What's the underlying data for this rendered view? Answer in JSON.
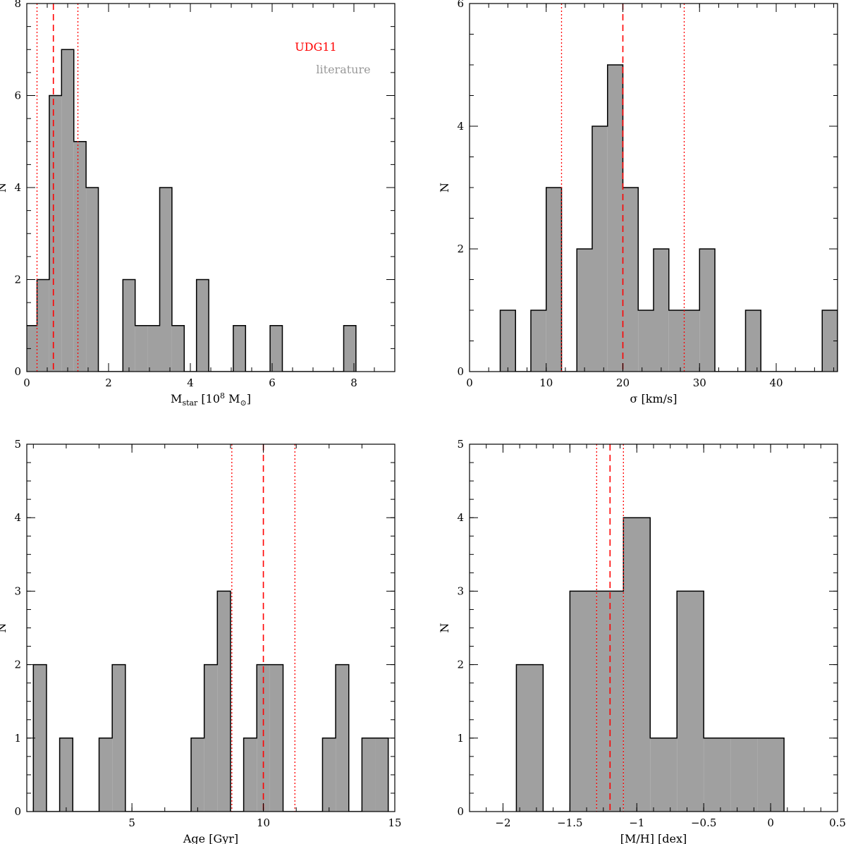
{
  "colors": {
    "bars": "#a0a0a0",
    "outline": "#000000",
    "udg11": "#ff0000",
    "literature": "#999999"
  },
  "legend": {
    "udg11": "UDG11",
    "literature": "literature"
  },
  "chart_data": [
    {
      "type": "bar",
      "xlabel": "M_star [10^8 M_⊙]",
      "ylabel": "N",
      "xlim": [
        0,
        9
      ],
      "ylim": [
        0,
        8
      ],
      "xticks": [
        0,
        2,
        4,
        6,
        8
      ],
      "yticks": [
        0,
        2,
        4,
        6,
        8
      ],
      "bin_width": 0.3,
      "bin_start": -0.05,
      "counts": [
        1,
        2,
        6,
        7,
        5,
        4,
        0,
        0,
        2,
        1,
        1,
        4,
        1,
        0,
        2,
        0,
        0,
        1,
        0,
        0,
        1,
        0,
        0,
        0,
        0,
        0,
        1
      ],
      "udg11": {
        "value": 0.65,
        "low": 0.25,
        "high": 1.25
      },
      "legend_position": "top-right"
    },
    {
      "type": "bar",
      "xlabel": "σ [km/s]",
      "ylabel": "N",
      "xlim": [
        0,
        48
      ],
      "ylim": [
        0,
        6
      ],
      "xticks": [
        0,
        10,
        20,
        30,
        40
      ],
      "yticks": [
        0,
        2,
        4,
        6
      ],
      "bin_width": 2,
      "bin_start": 4,
      "counts": [
        1,
        0,
        1,
        3,
        0,
        2,
        4,
        5,
        3,
        1,
        2,
        1,
        1,
        2,
        0,
        0,
        1,
        0,
        0,
        0,
        0,
        1
      ],
      "udg11": {
        "value": 20,
        "low": 12,
        "high": 28
      }
    },
    {
      "type": "bar",
      "xlabel": "Age [Gyr]",
      "ylabel": "N",
      "xlim": [
        1,
        15
      ],
      "ylim": [
        0,
        5
      ],
      "xticks": [
        5,
        10,
        15
      ],
      "yticks": [
        0,
        1,
        2,
        3,
        4,
        5
      ],
      "bin_width": 0.5,
      "bin_start": 1.25,
      "counts": [
        2,
        0,
        1,
        0,
        0,
        1,
        2,
        0,
        0,
        0,
        0,
        0,
        1,
        2,
        3,
        0,
        1,
        2,
        2,
        0,
        0,
        0,
        1,
        2,
        0,
        1,
        1
      ],
      "udg11": {
        "value": 10,
        "low": 8.8,
        "high": 11.2
      }
    },
    {
      "type": "bar",
      "xlabel": "[M/H] [dex]",
      "ylabel": "N",
      "xlim": [
        -2.25,
        0.5
      ],
      "ylim": [
        0,
        5
      ],
      "xticks": [
        -2,
        -1.5,
        -1,
        -0.5,
        0,
        0.5
      ],
      "xticklabels": [
        "−2",
        "−1.5",
        "−1",
        "−0.5",
        "0",
        "0.5"
      ],
      "yticks": [
        0,
        1,
        2,
        3,
        4,
        5
      ],
      "bin_width": 0.2,
      "bin_start": -1.9,
      "counts": [
        2,
        0,
        3,
        3,
        4,
        1,
        3,
        1,
        1,
        1
      ],
      "udg11": {
        "value": -1.2,
        "low": -1.3,
        "high": -1.1
      }
    }
  ]
}
